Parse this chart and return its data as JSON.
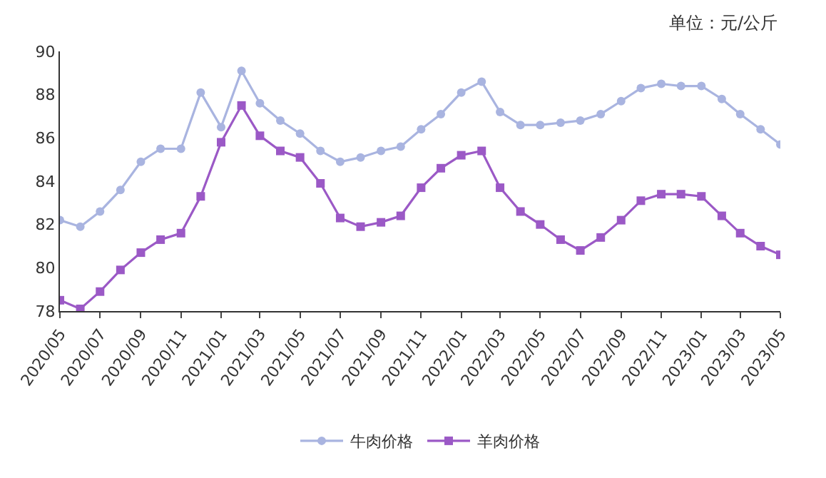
{
  "chart_data": {
    "type": "line",
    "annotations": [
      "单位：元/公斤"
    ],
    "x": [
      "2020-05",
      "2020-06",
      "2020-07",
      "2020-08",
      "2020-09",
      "2020-10",
      "2020-11",
      "2020-12",
      "2021-01",
      "2021-02",
      "2021-03",
      "2021-04",
      "2021-05",
      "2021-06",
      "2021-07",
      "2021-08",
      "2021-09",
      "2021-10",
      "2021-11",
      "2021-12",
      "2022-01",
      "2022-02",
      "2022-03",
      "2022-04",
      "2022-05",
      "2022-06",
      "2022-07",
      "2022-08",
      "2022-09",
      "2022-10",
      "2022-11",
      "2022-12",
      "2023-01",
      "2023-02",
      "2023-03",
      "2023-04",
      "2023-05"
    ],
    "series": [
      {
        "name": "牛肉价格",
        "color": "#a9b4e0",
        "marker": "circle",
        "values": [
          82.2,
          81.9,
          82.6,
          83.6,
          84.9,
          85.5,
          85.5,
          88.1,
          86.5,
          89.1,
          87.6,
          86.8,
          86.2,
          85.4,
          84.9,
          85.1,
          85.4,
          85.6,
          86.4,
          87.1,
          88.1,
          88.6,
          87.2,
          86.6,
          86.6,
          86.7,
          86.8,
          87.1,
          87.7,
          88.3,
          88.5,
          88.4,
          88.4,
          87.8,
          87.1,
          86.4,
          85.7
        ]
      },
      {
        "name": "羊肉价格",
        "color": "#9b59c6",
        "marker": "square",
        "values": [
          78.5,
          78.1,
          78.9,
          79.9,
          80.7,
          81.3,
          81.6,
          83.3,
          85.8,
          87.5,
          86.1,
          85.4,
          85.1,
          83.9,
          82.3,
          81.9,
          82.1,
          82.4,
          83.7,
          84.6,
          85.2,
          85.4,
          83.7,
          82.6,
          82.0,
          81.3,
          80.8,
          81.4,
          82.2,
          83.1,
          83.4,
          83.4,
          83.3,
          82.4,
          81.6,
          81.0,
          80.6
        ]
      }
    ],
    "xlim": [
      "2020-05",
      "2023-05"
    ],
    "xticks": [
      {
        "value": "2020-05",
        "label": "2020/05"
      },
      {
        "value": "2020-07",
        "label": "2020/07"
      },
      {
        "value": "2020-09",
        "label": "2020/09"
      },
      {
        "value": "2020-11",
        "label": "2020/11"
      },
      {
        "value": "2021-01",
        "label": "2021/01"
      },
      {
        "value": "2021-03",
        "label": "2021/03"
      },
      {
        "value": "2021-05",
        "label": "2021/05"
      },
      {
        "value": "2021-07",
        "label": "2021/07"
      },
      {
        "value": "2021-09",
        "label": "2021/09"
      },
      {
        "value": "2021-11",
        "label": "2021/11"
      },
      {
        "value": "2022-01",
        "label": "2022/01"
      },
      {
        "value": "2022-03",
        "label": "2022/03"
      },
      {
        "value": "2022-05",
        "label": "2022/05"
      },
      {
        "value": "2022-07",
        "label": "2022/07"
      },
      {
        "value": "2022-09",
        "label": "2022/09"
      },
      {
        "value": "2022-11",
        "label": "2022/11"
      },
      {
        "value": "2023-01",
        "label": "2023/01"
      },
      {
        "value": "2023-03",
        "label": "2023/03"
      },
      {
        "value": "2023-05",
        "label": "2023/05"
      }
    ],
    "ylim": [
      78,
      90
    ],
    "yticks": [
      78,
      80,
      82,
      84,
      86,
      88,
      90
    ],
    "legend": "bottom",
    "line_style": "solid"
  }
}
